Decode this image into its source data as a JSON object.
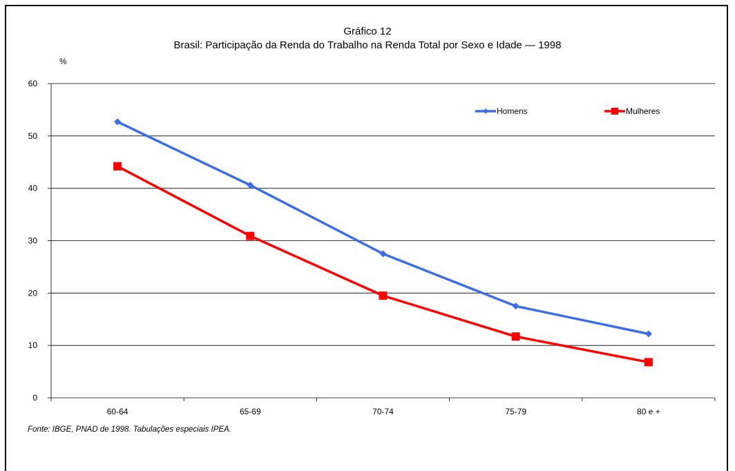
{
  "chart_data": {
    "type": "line",
    "title": "Gráfico 12",
    "subtitle": "Brasil: Participação da Renda do Trabalho na Renda Total por Sexo e Idade — 1998",
    "ylabel": "%",
    "xlabel": "",
    "categories": [
      "60-64",
      "65-69",
      "70-74",
      "75-79",
      "80 e +"
    ],
    "ylim": [
      0,
      60
    ],
    "yticks": [
      0,
      10,
      20,
      30,
      40,
      50,
      60
    ],
    "grid": true,
    "legend_position": "top-right",
    "series": [
      {
        "name": "Homens",
        "values": [
          52.7,
          40.6,
          27.5,
          17.5,
          12.2
        ],
        "color": "#3a6ee8",
        "marker": "diamond"
      },
      {
        "name": "Mulheres",
        "values": [
          44.2,
          30.9,
          19.5,
          11.7,
          6.8
        ],
        "color": "#ff0000",
        "marker": "square"
      }
    ]
  },
  "source": "Fonte: IBGE, PNAD de 1998. Tabulações especiais IPEA."
}
